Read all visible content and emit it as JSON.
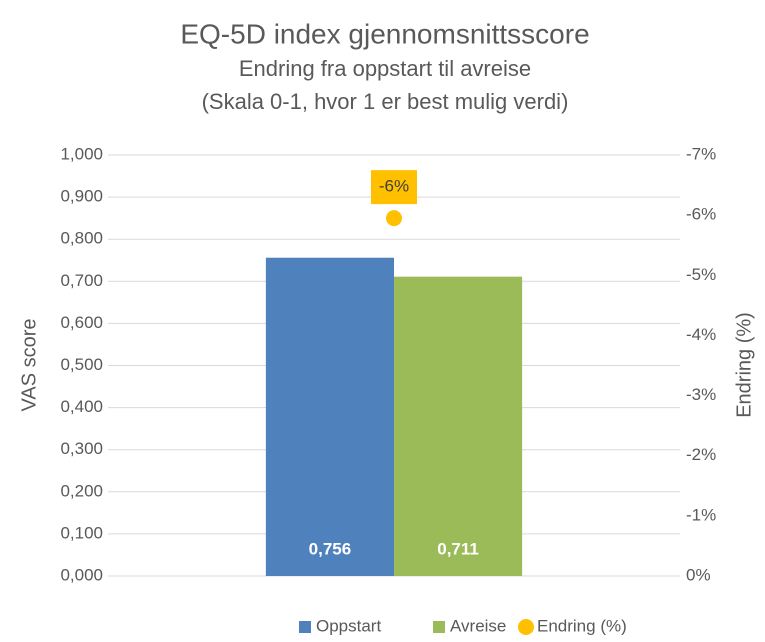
{
  "chart_data": {
    "type": "bar",
    "title": "EQ-5D index gjennomsnittsscore",
    "subtitle": [
      "Endring fra oppstart til avreise",
      "(Skala 0-1, hvor 1 er best mulig verdi)"
    ],
    "y_label": "VAS score",
    "y2_label": "Endring (%)",
    "categories": [
      null
    ],
    "series": [
      {
        "name": "Oppstart",
        "color": "#4f81bd",
        "values": [
          0.756
        ],
        "value_labels": [
          "0,756"
        ]
      },
      {
        "name": "Avreise",
        "color": "#9bbb59",
        "values": [
          0.711
        ],
        "value_labels": [
          "0,711"
        ]
      },
      {
        "name": "Endring (%)",
        "type": "scatter",
        "axis": "y2",
        "color": "#ffc000",
        "values": [
          -5.95
        ],
        "value_labels": [
          "-6%"
        ]
      }
    ],
    "ylim": [
      0,
      1
    ],
    "yticks": [
      {
        "value": 0,
        "label": "0,000"
      },
      {
        "value": 0.1,
        "label": "0,100"
      },
      {
        "value": 0.2,
        "label": "0,200"
      },
      {
        "value": 0.3,
        "label": "0,300"
      },
      {
        "value": 0.4,
        "label": "0,400"
      },
      {
        "value": 0.5,
        "label": "0,500"
      },
      {
        "value": 0.6,
        "label": "0,600"
      },
      {
        "value": 0.7,
        "label": "0,700"
      },
      {
        "value": 0.8,
        "label": "0,800"
      },
      {
        "value": 0.9,
        "label": "0,900"
      },
      {
        "value": 1,
        "label": "1,000"
      }
    ],
    "y2lim": [
      0,
      -7
    ],
    "y2ticks": [
      {
        "value": 0,
        "label": "0%"
      },
      {
        "value": -1,
        "label": "-1%"
      },
      {
        "value": -2,
        "label": "-2%"
      },
      {
        "value": -3,
        "label": "-3%"
      },
      {
        "value": -4,
        "label": "-4%"
      },
      {
        "value": -5,
        "label": "-5%"
      },
      {
        "value": -6,
        "label": "-6%"
      },
      {
        "value": -7,
        "label": "-7%"
      }
    ],
    "grid": true,
    "legend": "bottom"
  }
}
